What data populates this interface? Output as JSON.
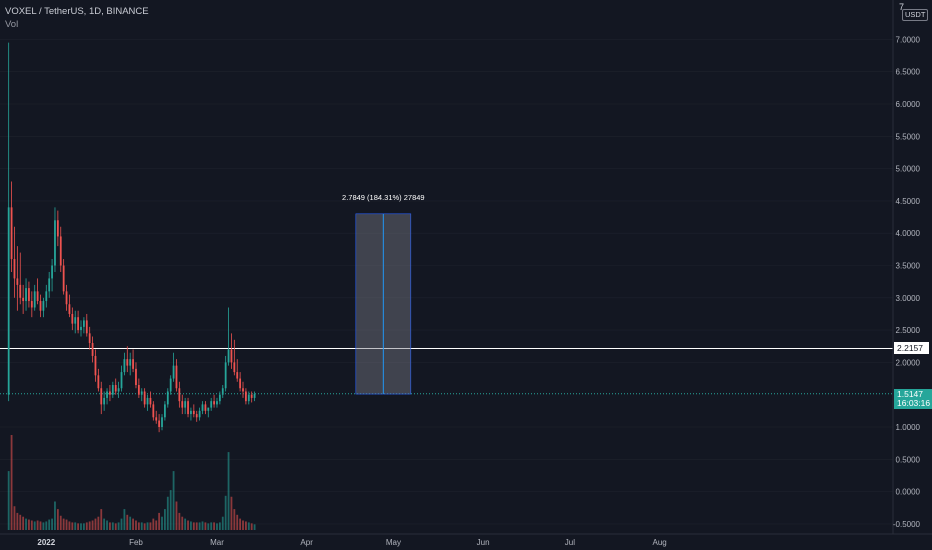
{
  "header": {
    "symbol_line": "VOXEL / TetherUS, 1D, BINANCE",
    "vol_label": "Vol",
    "currency": "USDT",
    "settings_icon": "settings-icon"
  },
  "price_axis": {
    "ticks": [
      "7.0000",
      "6.5000",
      "6.0000",
      "5.5000",
      "5.0000",
      "4.5000",
      "4.0000",
      "3.5000",
      "3.0000",
      "2.5000",
      "2.0000",
      "1.0000",
      "0.5000",
      "0.0000",
      "-0.5000"
    ],
    "tick_values": [
      7.0,
      6.5,
      6.0,
      5.5,
      5.0,
      4.5,
      4.0,
      3.5,
      3.0,
      2.5,
      2.0,
      1.0,
      0.5,
      0.0,
      -0.5
    ]
  },
  "time_axis": {
    "labels": [
      "2022",
      "Feb",
      "Mar",
      "Apr",
      "May",
      "Jun",
      "Jul",
      "Aug"
    ]
  },
  "horizontal_line": {
    "price": 2.2157,
    "label": "2.2157",
    "color": "#ffffff"
  },
  "last_price": {
    "price": 1.5147,
    "label": "1.5147",
    "countdown": "16:03:16",
    "color": "#26a69a"
  },
  "measure": {
    "label": "2.7849 (184.31%) 27849",
    "from_price": 1.51,
    "to_price": 4.3,
    "start_date": "2022-04-18",
    "end_date": "2022-05-07"
  },
  "colors": {
    "up": "#26a69a",
    "down": "#ef5350",
    "background": "#131722",
    "grid": "#1e222d",
    "text": "#b2b5be"
  },
  "chart_data": {
    "type": "candlestick",
    "title": "VOXEL / TetherUS, 1D, BINANCE",
    "y_range": [
      -0.5,
      7.0
    ],
    "time_range": [
      "2021-12-16",
      "2022-08-04"
    ],
    "start_date": "2021-12-19",
    "ohlc": [
      [
        1.5,
        6.95,
        1.4,
        4.4
      ],
      [
        4.4,
        4.8,
        3.4,
        3.6
      ],
      [
        3.6,
        4.1,
        3.0,
        3.3
      ],
      [
        3.3,
        3.8,
        2.8,
        3.2
      ],
      [
        3.2,
        3.7,
        2.9,
        3.0
      ],
      [
        3.0,
        3.2,
        2.75,
        2.95
      ],
      [
        2.95,
        3.3,
        2.8,
        3.15
      ],
      [
        3.15,
        3.25,
        2.85,
        2.95
      ],
      [
        2.95,
        3.1,
        2.7,
        2.85
      ],
      [
        2.85,
        3.2,
        2.8,
        3.1
      ],
      [
        3.1,
        3.3,
        2.9,
        2.95
      ],
      [
        2.95,
        3.05,
        2.7,
        2.8
      ],
      [
        2.8,
        3.0,
        2.7,
        2.95
      ],
      [
        2.95,
        3.2,
        2.85,
        3.1
      ],
      [
        3.1,
        3.4,
        3.0,
        3.3
      ],
      [
        3.3,
        3.6,
        3.1,
        3.5
      ],
      [
        3.5,
        4.4,
        3.4,
        4.2
      ],
      [
        4.2,
        4.35,
        3.8,
        3.95
      ],
      [
        3.95,
        4.1,
        3.4,
        3.5
      ],
      [
        3.5,
        3.6,
        3.05,
        3.1
      ],
      [
        3.1,
        3.2,
        2.8,
        2.9
      ],
      [
        2.9,
        3.05,
        2.7,
        2.75
      ],
      [
        2.75,
        2.85,
        2.5,
        2.6
      ],
      [
        2.6,
        2.8,
        2.45,
        2.7
      ],
      [
        2.7,
        2.8,
        2.45,
        2.5
      ],
      [
        2.5,
        2.65,
        2.4,
        2.55
      ],
      [
        2.55,
        2.7,
        2.45,
        2.65
      ],
      [
        2.65,
        2.75,
        2.4,
        2.45
      ],
      [
        2.45,
        2.55,
        2.2,
        2.3
      ],
      [
        2.3,
        2.4,
        2.0,
        2.1
      ],
      [
        2.1,
        2.2,
        1.7,
        1.8
      ],
      [
        1.8,
        1.9,
        1.55,
        1.6
      ],
      [
        1.6,
        1.7,
        1.2,
        1.35
      ],
      [
        1.35,
        1.55,
        1.25,
        1.45
      ],
      [
        1.45,
        1.6,
        1.35,
        1.55
      ],
      [
        1.55,
        1.65,
        1.4,
        1.5
      ],
      [
        1.5,
        1.7,
        1.45,
        1.65
      ],
      [
        1.65,
        1.75,
        1.5,
        1.55
      ],
      [
        1.55,
        1.7,
        1.45,
        1.6
      ],
      [
        1.6,
        1.95,
        1.55,
        1.85
      ],
      [
        1.85,
        2.15,
        1.8,
        2.05
      ],
      [
        2.05,
        2.25,
        1.85,
        1.95
      ],
      [
        1.95,
        2.15,
        1.8,
        2.05
      ],
      [
        2.05,
        2.2,
        1.85,
        1.9
      ],
      [
        1.9,
        2.0,
        1.6,
        1.65
      ],
      [
        1.65,
        1.75,
        1.45,
        1.5
      ],
      [
        1.5,
        1.6,
        1.4,
        1.55
      ],
      [
        1.55,
        1.6,
        1.3,
        1.35
      ],
      [
        1.35,
        1.5,
        1.25,
        1.45
      ],
      [
        1.45,
        1.55,
        1.3,
        1.35
      ],
      [
        1.35,
        1.4,
        1.1,
        1.15
      ],
      [
        1.15,
        1.25,
        1.05,
        1.1
      ],
      [
        1.1,
        1.2,
        0.92,
        1.0
      ],
      [
        1.0,
        1.2,
        0.95,
        1.15
      ],
      [
        1.15,
        1.4,
        1.1,
        1.35
      ],
      [
        1.35,
        1.6,
        1.3,
        1.55
      ],
      [
        1.55,
        1.8,
        1.5,
        1.75
      ],
      [
        1.75,
        2.15,
        1.7,
        1.95
      ],
      [
        1.95,
        2.05,
        1.55,
        1.6
      ],
      [
        1.6,
        1.7,
        1.3,
        1.4
      ],
      [
        1.4,
        1.5,
        1.2,
        1.3
      ],
      [
        1.3,
        1.45,
        1.2,
        1.4
      ],
      [
        1.4,
        1.45,
        1.15,
        1.2
      ],
      [
        1.2,
        1.3,
        1.1,
        1.25
      ],
      [
        1.25,
        1.35,
        1.15,
        1.2
      ],
      [
        1.2,
        1.25,
        1.08,
        1.15
      ],
      [
        1.15,
        1.3,
        1.1,
        1.25
      ],
      [
        1.25,
        1.4,
        1.2,
        1.35
      ],
      [
        1.35,
        1.4,
        1.2,
        1.25
      ],
      [
        1.25,
        1.3,
        1.15,
        1.3
      ],
      [
        1.3,
        1.45,
        1.25,
        1.4
      ],
      [
        1.4,
        1.5,
        1.3,
        1.35
      ],
      [
        1.35,
        1.45,
        1.3,
        1.4
      ],
      [
        1.4,
        1.55,
        1.35,
        1.5
      ],
      [
        1.5,
        1.65,
        1.45,
        1.6
      ],
      [
        1.6,
        2.1,
        1.55,
        2.0
      ],
      [
        2.0,
        2.85,
        1.95,
        2.2
      ],
      [
        2.2,
        2.45,
        1.9,
        2.0
      ],
      [
        2.0,
        2.35,
        1.8,
        1.85
      ],
      [
        1.85,
        2.05,
        1.7,
        1.75
      ],
      [
        1.75,
        1.85,
        1.55,
        1.6
      ],
      [
        1.6,
        1.7,
        1.45,
        1.55
      ],
      [
        1.55,
        1.6,
        1.35,
        1.4
      ],
      [
        1.4,
        1.55,
        1.35,
        1.5
      ],
      [
        1.5,
        1.55,
        1.38,
        1.45
      ],
      [
        1.45,
        1.55,
        1.4,
        1.51
      ]
    ],
    "volume": [
      0.62,
      1.0,
      0.25,
      0.18,
      0.16,
      0.14,
      0.12,
      0.11,
      0.1,
      0.09,
      0.1,
      0.09,
      0.08,
      0.09,
      0.11,
      0.12,
      0.3,
      0.22,
      0.15,
      0.12,
      0.11,
      0.09,
      0.08,
      0.08,
      0.07,
      0.07,
      0.07,
      0.08,
      0.09,
      0.1,
      0.12,
      0.14,
      0.22,
      0.12,
      0.1,
      0.08,
      0.08,
      0.07,
      0.08,
      0.12,
      0.22,
      0.16,
      0.14,
      0.12,
      0.1,
      0.08,
      0.08,
      0.07,
      0.08,
      0.08,
      0.12,
      0.1,
      0.18,
      0.14,
      0.22,
      0.35,
      0.42,
      0.62,
      0.3,
      0.18,
      0.14,
      0.12,
      0.1,
      0.09,
      0.08,
      0.08,
      0.08,
      0.09,
      0.08,
      0.07,
      0.08,
      0.08,
      0.07,
      0.08,
      0.14,
      0.36,
      0.82,
      0.35,
      0.22,
      0.16,
      0.12,
      0.1,
      0.09,
      0.08,
      0.07,
      0.06
    ]
  }
}
